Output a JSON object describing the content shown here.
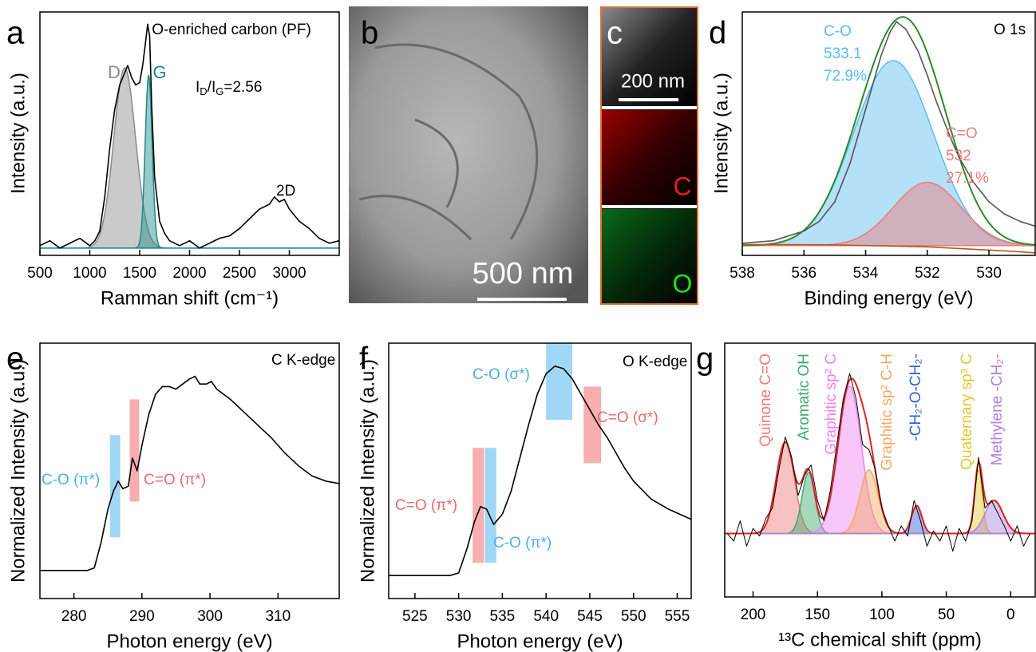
{
  "chart_data": [
    {
      "label": "a",
      "type": "line",
      "title": "O-enriched carbon (PF)",
      "xlabel": "Ramman shift (cm⁻¹)",
      "ylabel": "Intensity (a.u.)",
      "xlim": [
        500,
        3500
      ],
      "ylim": [
        0,
        100
      ],
      "xticks": [
        500,
        1000,
        1500,
        2000,
        2500,
        3000
      ],
      "peak_base": 3,
      "series": [
        {
          "color": "#000000",
          "x": [
            500,
            600,
            700,
            800,
            900,
            1000,
            1050,
            1100,
            1150,
            1200,
            1250,
            1300,
            1350,
            1380,
            1420,
            1460,
            1500,
            1530,
            1560,
            1580,
            1600,
            1620,
            1650,
            1700,
            1750,
            1800,
            1900,
            2000,
            2100,
            2200,
            2300,
            2400,
            2500,
            2600,
            2700,
            2800,
            2850,
            2900,
            2950,
            3000,
            3100,
            3200,
            3300,
            3400,
            3500
          ],
          "values": [
            4,
            6,
            3,
            5,
            7,
            4,
            6,
            10,
            24,
            44,
            60,
            70,
            75,
            78,
            73,
            70,
            71,
            78,
            88,
            95,
            90,
            62,
            32,
            14,
            9,
            6,
            4,
            6,
            3,
            5,
            7,
            8,
            11,
            15,
            19,
            21,
            24,
            22,
            23,
            19,
            14,
            11,
            7,
            5,
            6
          ]
        }
      ],
      "peaks": [
        {
          "name": "D",
          "center": 1350,
          "height": 74,
          "width": 110,
          "color": "#8a8a8a"
        },
        {
          "name": "G",
          "center": 1590,
          "height": 71,
          "width": 35,
          "color": "#1a8a8a"
        }
      ],
      "annotations": [
        {
          "parts": [
            "I",
            "D",
            "/I",
            "G",
            "=2.56"
          ],
          "color": "#000000"
        },
        {
          "text": "2D",
          "color": "#000000"
        }
      ]
    },
    {
      "label": "d",
      "type": "line",
      "title": "O 1s",
      "xlabel": "Binding energy (eV)",
      "ylabel": "Intensity (a.u.)",
      "xlim": [
        538,
        528.5
      ],
      "ylim": [
        0,
        100
      ],
      "xticks": [
        538,
        536,
        534,
        532,
        530
      ],
      "peak_base": 4,
      "envelope_color": "#2a8a2a",
      "series": [
        {
          "color": "#555555",
          "x": [
            538,
            537,
            536,
            535.5,
            535,
            534.5,
            534,
            533.5,
            533.2,
            533,
            532.7,
            532.3,
            532,
            531.7,
            531.3,
            531,
            530.5,
            530,
            529.5,
            529,
            528.5
          ],
          "values": [
            5,
            6,
            10,
            14,
            22,
            38,
            60,
            82,
            92,
            96,
            93,
            84,
            74,
            63,
            50,
            41,
            30,
            22,
            17,
            14,
            12
          ]
        },
        {
          "color": "#b05a20",
          "x": [
            538,
            535,
            532,
            529,
            528.5
          ],
          "values": [
            4.5,
            4.3,
            3.5,
            1.5,
            1
          ]
        }
      ],
      "peaks": [
        {
          "name": "C-O",
          "center": 533.1,
          "height": 76,
          "width": 1.3,
          "color": "#5bbcf0",
          "area": 72.9,
          "area_label": "72.9%"
        },
        {
          "name": "C=O",
          "center": 532,
          "height": 26,
          "width": 1.1,
          "color": "#f07878",
          "area": 27.1,
          "area_label": "27.1%"
        }
      ]
    },
    {
      "label": "e",
      "type": "line",
      "title": "C K-edge",
      "xlabel": "Photon energy (eV)",
      "ylabel": "Normalized Intensity (a.u.)",
      "xlim": [
        275,
        319
      ],
      "ylim": [
        0,
        100
      ],
      "xticks": [
        280,
        290,
        300,
        310
      ],
      "series": [
        {
          "color": "#000000",
          "x": [
            275,
            282,
            283,
            284,
            285,
            285.8,
            286.5,
            287.2,
            288,
            288.6,
            289.3,
            290,
            291,
            292,
            293,
            294,
            295,
            296,
            297,
            297.8,
            298.5,
            299.5,
            300.2,
            301,
            303,
            305,
            307,
            309,
            311,
            313,
            315,
            317,
            319
          ],
          "values": [
            11,
            11,
            12,
            22,
            35,
            42,
            46,
            43,
            44,
            55,
            50,
            60,
            72,
            80,
            83,
            83,
            82,
            84,
            86,
            87,
            84,
            84,
            85,
            82,
            78,
            73,
            68,
            63,
            57,
            52,
            48,
            46,
            45
          ]
        }
      ],
      "bands": [
        {
          "name": "C-O (π*)",
          "x": [
            285.3,
            286.8
          ],
          "y": [
            24,
            64
          ],
          "color": "#8fd0f5",
          "label_color": "#4ab0e8"
        },
        {
          "name": "C=O (π*)",
          "x": [
            288.2,
            289.6
          ],
          "y": [
            38,
            78
          ],
          "color": "#f5a0a0",
          "label_color": "#e86a6a"
        }
      ]
    },
    {
      "label": "f",
      "type": "line",
      "title": "O K-edge",
      "xlabel": "Photon energy (eV)",
      "ylabel": "Normalized Intensity (a.u.)",
      "xlim": [
        522,
        556.6
      ],
      "ylim": [
        0,
        100
      ],
      "xticks": [
        525,
        530,
        535,
        540,
        545,
        550,
        555
      ],
      "series": [
        {
          "color": "#000000",
          "x": [
            522,
            529,
            530,
            531,
            531.8,
            532.5,
            533.2,
            534,
            535,
            536,
            537,
            538,
            539,
            540,
            541,
            542,
            543,
            544,
            545,
            546,
            547,
            548,
            549,
            550,
            552,
            554,
            556.6
          ],
          "values": [
            9,
            9,
            10,
            20,
            30,
            36,
            35,
            29,
            33,
            42,
            55,
            68,
            80,
            88,
            91,
            90,
            86,
            80,
            74,
            68,
            63,
            57,
            51,
            46,
            39,
            35,
            31
          ]
        }
      ],
      "bands": [
        {
          "name": "C-O (σ*)",
          "x": [
            540,
            543
          ],
          "y": [
            70,
            100
          ],
          "color": "#8fd0f5",
          "label_color": "#4ab0e8"
        },
        {
          "name": "C=O (σ*)",
          "x": [
            544.3,
            546.3
          ],
          "y": [
            53,
            83
          ],
          "color": "#f5a0a0",
          "label_color": "#e86a6a"
        },
        {
          "name": "C=O (π*)",
          "x": [
            531.6,
            532.9
          ],
          "y": [
            14,
            59
          ],
          "color": "#f5a0a0",
          "label_color": "#e86a6a"
        },
        {
          "name": "C-O (π*)",
          "x": [
            533,
            534.3
          ],
          "y": [
            14,
            59
          ],
          "color": "#8fd0f5",
          "label_color": "#4ab0e8"
        }
      ]
    },
    {
      "label": "g",
      "type": "line",
      "xlabel": "¹³C chemical shift (ppm)",
      "xlim": [
        222,
        -19
      ],
      "ylim": [
        0,
        100
      ],
      "xticks": [
        200,
        150,
        100,
        50,
        0
      ],
      "peak_base": 25,
      "envelope_color": "#e02020",
      "series": [
        {
          "color": "#000000",
          "x": [
            220,
            215,
            210,
            205,
            200,
            195,
            190,
            185,
            180,
            175,
            170,
            165,
            160,
            155,
            150,
            145,
            140,
            135,
            130,
            125,
            120,
            115,
            110,
            105,
            100,
            95,
            90,
            85,
            80,
            75,
            70,
            65,
            60,
            55,
            50,
            45,
            40,
            35,
            30,
            25,
            20,
            15,
            10,
            5,
            0,
            -5,
            -10,
            -15
          ],
          "values": [
            25,
            22,
            30,
            20,
            27,
            24,
            31,
            35,
            50,
            63,
            55,
            40,
            48,
            52,
            38,
            30,
            42,
            60,
            78,
            88,
            78,
            60,
            58,
            50,
            35,
            28,
            22,
            28,
            24,
            38,
            30,
            20,
            26,
            22,
            28,
            18,
            27,
            22,
            30,
            55,
            35,
            38,
            33,
            28,
            22,
            28,
            20,
            25
          ]
        }
      ],
      "peaks": [
        {
          "name": "Quinone C=O",
          "center": 175,
          "height": 36,
          "width": 7,
          "color": "#f07878"
        },
        {
          "name": "Aromatic OH",
          "center": 157,
          "height": 24,
          "width": 5,
          "color": "#3aaa6a"
        },
        {
          "name": "Graphitic sp² C",
          "center": 125,
          "height": 58,
          "width": 9,
          "color": "#f080f0"
        },
        {
          "name": "Graphitic sp² C-H",
          "center": 110,
          "height": 25,
          "width": 7,
          "color": "#f0a860"
        },
        {
          "name": "-CH₂-O-CH₂-",
          "center": 73,
          "height": 11,
          "width": 4,
          "color": "#3060d0"
        },
        {
          "name": "Quaternary sp³ C",
          "center": 25,
          "height": 25,
          "width": 3,
          "color": "#e0c830"
        },
        {
          "name": "Methylene -CH₂-",
          "center": 13,
          "height": 13,
          "width": 7,
          "color": "#b080e0"
        }
      ]
    }
  ],
  "images": [
    {
      "label": "b",
      "scale_bar": "500 nm"
    },
    {
      "label": "c",
      "scale_bar": "200 nm",
      "maps": [
        "C",
        "O"
      ]
    }
  ]
}
